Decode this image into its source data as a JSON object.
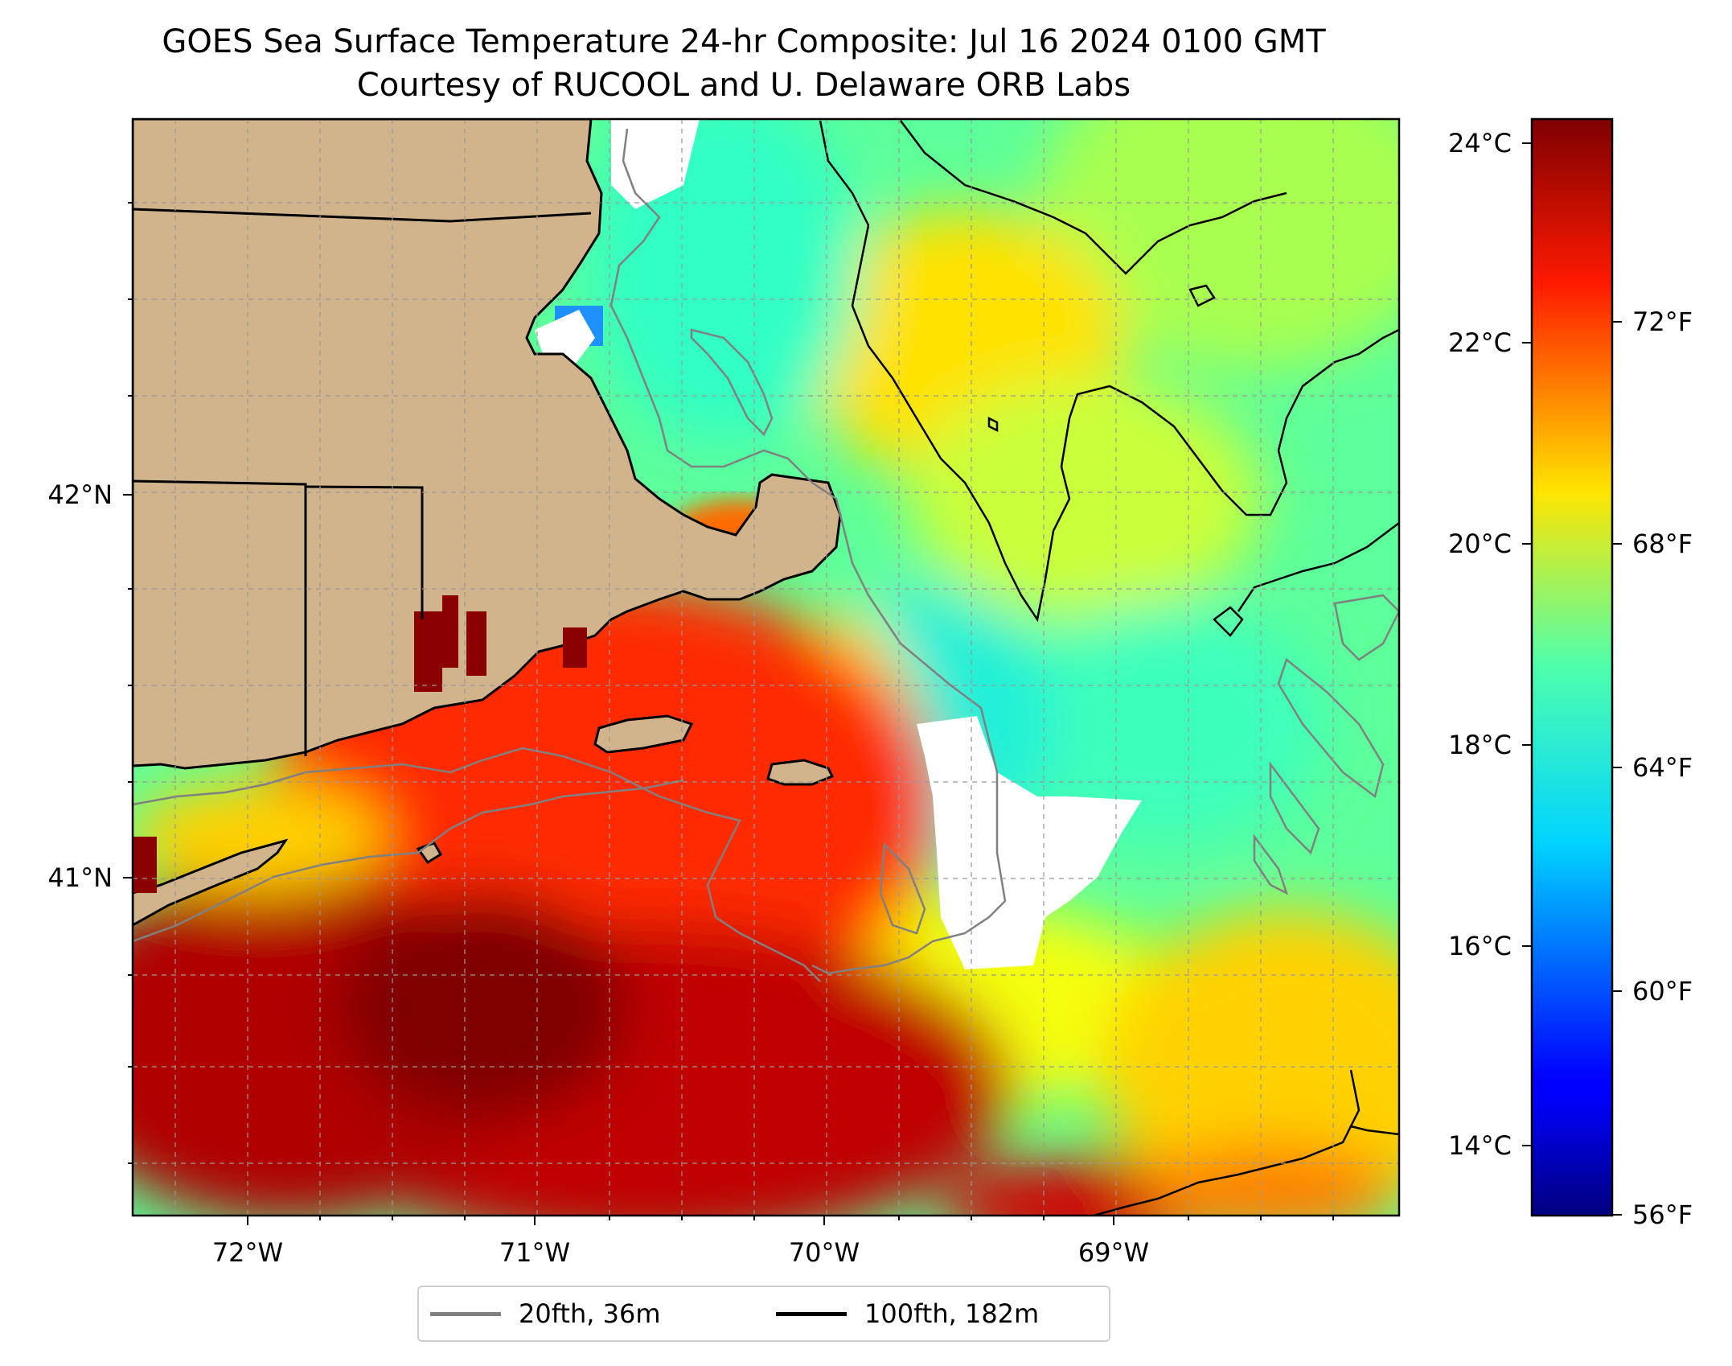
{
  "title": {
    "line1": "GOES Sea Surface Temperature 24-hr Composite: Jul 16 2024 0100 GMT",
    "line2": "Courtesy of RUCOOL and U. Delaware ORB Labs"
  },
  "map": {
    "lon_labels": [
      "72°W",
      "71°W",
      "70°W",
      "69°W"
    ],
    "lat_labels": [
      "42°N",
      "41°N"
    ],
    "land_color": "#d2b48c"
  },
  "colorbar": {
    "celsius_labels": [
      "24°C",
      "22°C",
      "20°C",
      "18°C",
      "16°C",
      "14°C"
    ],
    "fahrenheit_labels": [
      "72°F",
      "68°F",
      "64°F",
      "60°F",
      "56°F"
    ],
    "colormap": "jet",
    "range_c": [
      13.3,
      24.3
    ]
  },
  "legend": {
    "items": [
      {
        "label": "20fth, 36m",
        "color": "#808080"
      },
      {
        "label": "100fth, 182m",
        "color": "#000000"
      }
    ]
  }
}
